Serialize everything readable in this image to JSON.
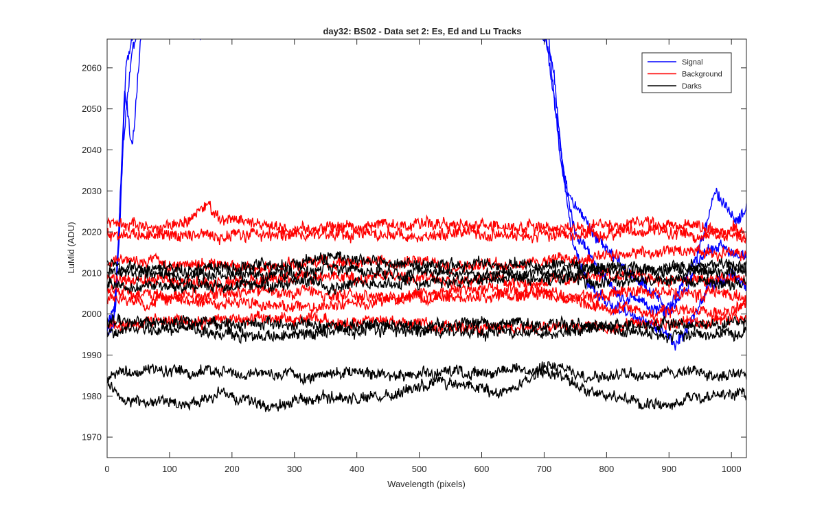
{
  "chart_data": {
    "type": "line",
    "title": "day32: BS02 - Data set 2: Es, Ed and Lu Tracks",
    "xlabel": "Wavelength (pixels)",
    "ylabel": "LuMid (ADU)",
    "xlim": [
      0,
      1024
    ],
    "ylim": [
      1965,
      2067
    ],
    "xticks": [
      0,
      100,
      200,
      300,
      400,
      500,
      600,
      700,
      800,
      900,
      1000
    ],
    "yticks": [
      1970,
      1980,
      1990,
      2000,
      2010,
      2020,
      2030,
      2040,
      2050,
      2060
    ],
    "grid": false,
    "legend_position": "top-right",
    "series": [
      {
        "name": "Signal",
        "color": "#0000ff",
        "traces": [
          {
            "x": [
              0,
              10,
              20,
              30,
              45,
              60,
              100,
              300,
              600,
              700,
              720,
              735,
              760,
              800,
              850,
              880,
              900,
              920,
              940,
              960,
              975,
              990,
              1010,
              1024
            ],
            "y": [
              1994,
              1997,
              2020,
              2060,
              2070,
              2070,
              2070,
              2070,
              2070,
              2070,
              2048,
              2030,
              2024,
              2015,
              2007,
              2003,
              2001,
              2005,
              2012,
              2022,
              2030,
              2026,
              2022,
              2027
            ],
            "noise": 1.2
          },
          {
            "x": [
              0,
              12,
              25,
              40,
              60,
              100,
              300,
              600,
              695,
              715,
              730,
              750,
              790,
              830,
              870,
              900,
              930,
              950,
              980,
              1024
            ],
            "y": [
              1996,
              2000,
              2040,
              2066,
              2070,
              2070,
              2070,
              2070,
              2070,
              2060,
              2035,
              2020,
              2010,
              2004,
              2002,
              2000,
              2006,
              2014,
              2017,
              2014
            ],
            "noise": 1.2
          },
          {
            "x": [
              0,
              14,
              28,
              40,
              55,
              100,
              300,
              600,
              705,
              725,
              745,
              770,
              810,
              850,
              890,
              910,
              930,
              960,
              1000,
              1024
            ],
            "y": [
              1997,
              2002,
              2055,
              2040,
              2070,
              2070,
              2070,
              2070,
              2070,
              2040,
              2018,
              2008,
              2002,
              1999,
              1996,
              1993,
              1996,
              2006,
              2010,
              2008
            ],
            "noise": 1.2
          }
        ]
      },
      {
        "name": "Background",
        "color": "#ff0000",
        "traces": [
          {
            "x": [
              0,
              100,
              140,
              160,
              180,
              300,
              500,
              700,
              850,
              1024
            ],
            "y": [
              2022,
              2021,
              2024,
              2027,
              2023,
              2021,
              2022,
              2021,
              2022,
              2020
            ],
            "noise": 1.2
          },
          {
            "x": [
              0,
              200,
              400,
              600,
              800,
              1024
            ],
            "y": [
              2019,
              2019,
              2020,
              2019,
              2020,
              2019
            ],
            "noise": 1.2
          },
          {
            "x": [
              0,
              200,
              400,
              600,
              800,
              1024
            ],
            "y": [
              2013,
              2012,
              2013,
              2012,
              2014,
              2015
            ],
            "noise": 1.2
          },
          {
            "x": [
              0,
              200,
              400,
              600,
              800,
              1024
            ],
            "y": [
              2008,
              2008,
              2009,
              2008,
              2009,
              2008
            ],
            "noise": 1.2
          },
          {
            "x": [
              0,
              150,
              300,
              450,
              600,
              750,
              900,
              1024
            ],
            "y": [
              2006,
              2005,
              2006,
              2004,
              2006,
              2004,
              2006,
              2004
            ],
            "noise": 1.2
          },
          {
            "x": [
              0,
              150,
              300,
              500,
              700,
              850,
              1024
            ],
            "y": [
              2004,
              2003,
              2002,
              2004,
              2005,
              2000,
              2002
            ],
            "noise": 1.2
          },
          {
            "x": [
              0,
              200,
              400,
              600,
              800,
              1024
            ],
            "y": [
              1998,
              1999,
              1998,
              1997,
              1997,
              1999
            ],
            "noise": 1.2
          }
        ]
      },
      {
        "name": "Darks",
        "color": "#000000",
        "traces": [
          {
            "x": [
              0,
              200,
              360,
              500,
              700,
              900,
              1024
            ],
            "y": [
              2012,
              2011,
              2014,
              2012,
              2012,
              2011,
              2012
            ],
            "noise": 1.2
          },
          {
            "x": [
              0,
              200,
              400,
              600,
              800,
              1024
            ],
            "y": [
              2010,
              2009,
              2011,
              2010,
              2010,
              2011
            ],
            "noise": 1.2
          },
          {
            "x": [
              0,
              200,
              400,
              600,
              800,
              1024
            ],
            "y": [
              2007,
              2007,
              2008,
              2008,
              2008,
              2008
            ],
            "noise": 1.2
          },
          {
            "x": [
              0,
              200,
              400,
              600,
              800,
              1024
            ],
            "y": [
              1998,
              1998,
              1997,
              1998,
              1997,
              1998
            ],
            "noise": 1.2
          },
          {
            "x": [
              0,
              150,
              250,
              400,
              600,
              800,
              900,
              1024
            ],
            "y": [
              1996,
              1996,
              1994,
              1996,
              1996,
              1996,
              1995,
              1996
            ],
            "noise": 1.2
          },
          {
            "x": [
              0,
              100,
              200,
              300,
              400,
              500,
              600,
              700,
              800,
              900,
              1024
            ],
            "y": [
              1985,
              1986,
              1986,
              1985,
              1986,
              1986,
              1986,
              1987,
              1985,
              1986,
              1985
            ],
            "noise": 1.1
          },
          {
            "x": [
              0,
              30,
              80,
              130,
              180,
              260,
              350,
              450,
              530,
              650,
              700,
              780,
              840,
              900,
              960,
              1024
            ],
            "y": [
              1983,
              1978,
              1978,
              1977,
              1981,
              1977,
              1980,
              1980,
              1983,
              1981,
              1986,
              1981,
              1978,
              1979,
              1980,
              1980
            ],
            "noise": 1.1
          }
        ]
      }
    ]
  }
}
